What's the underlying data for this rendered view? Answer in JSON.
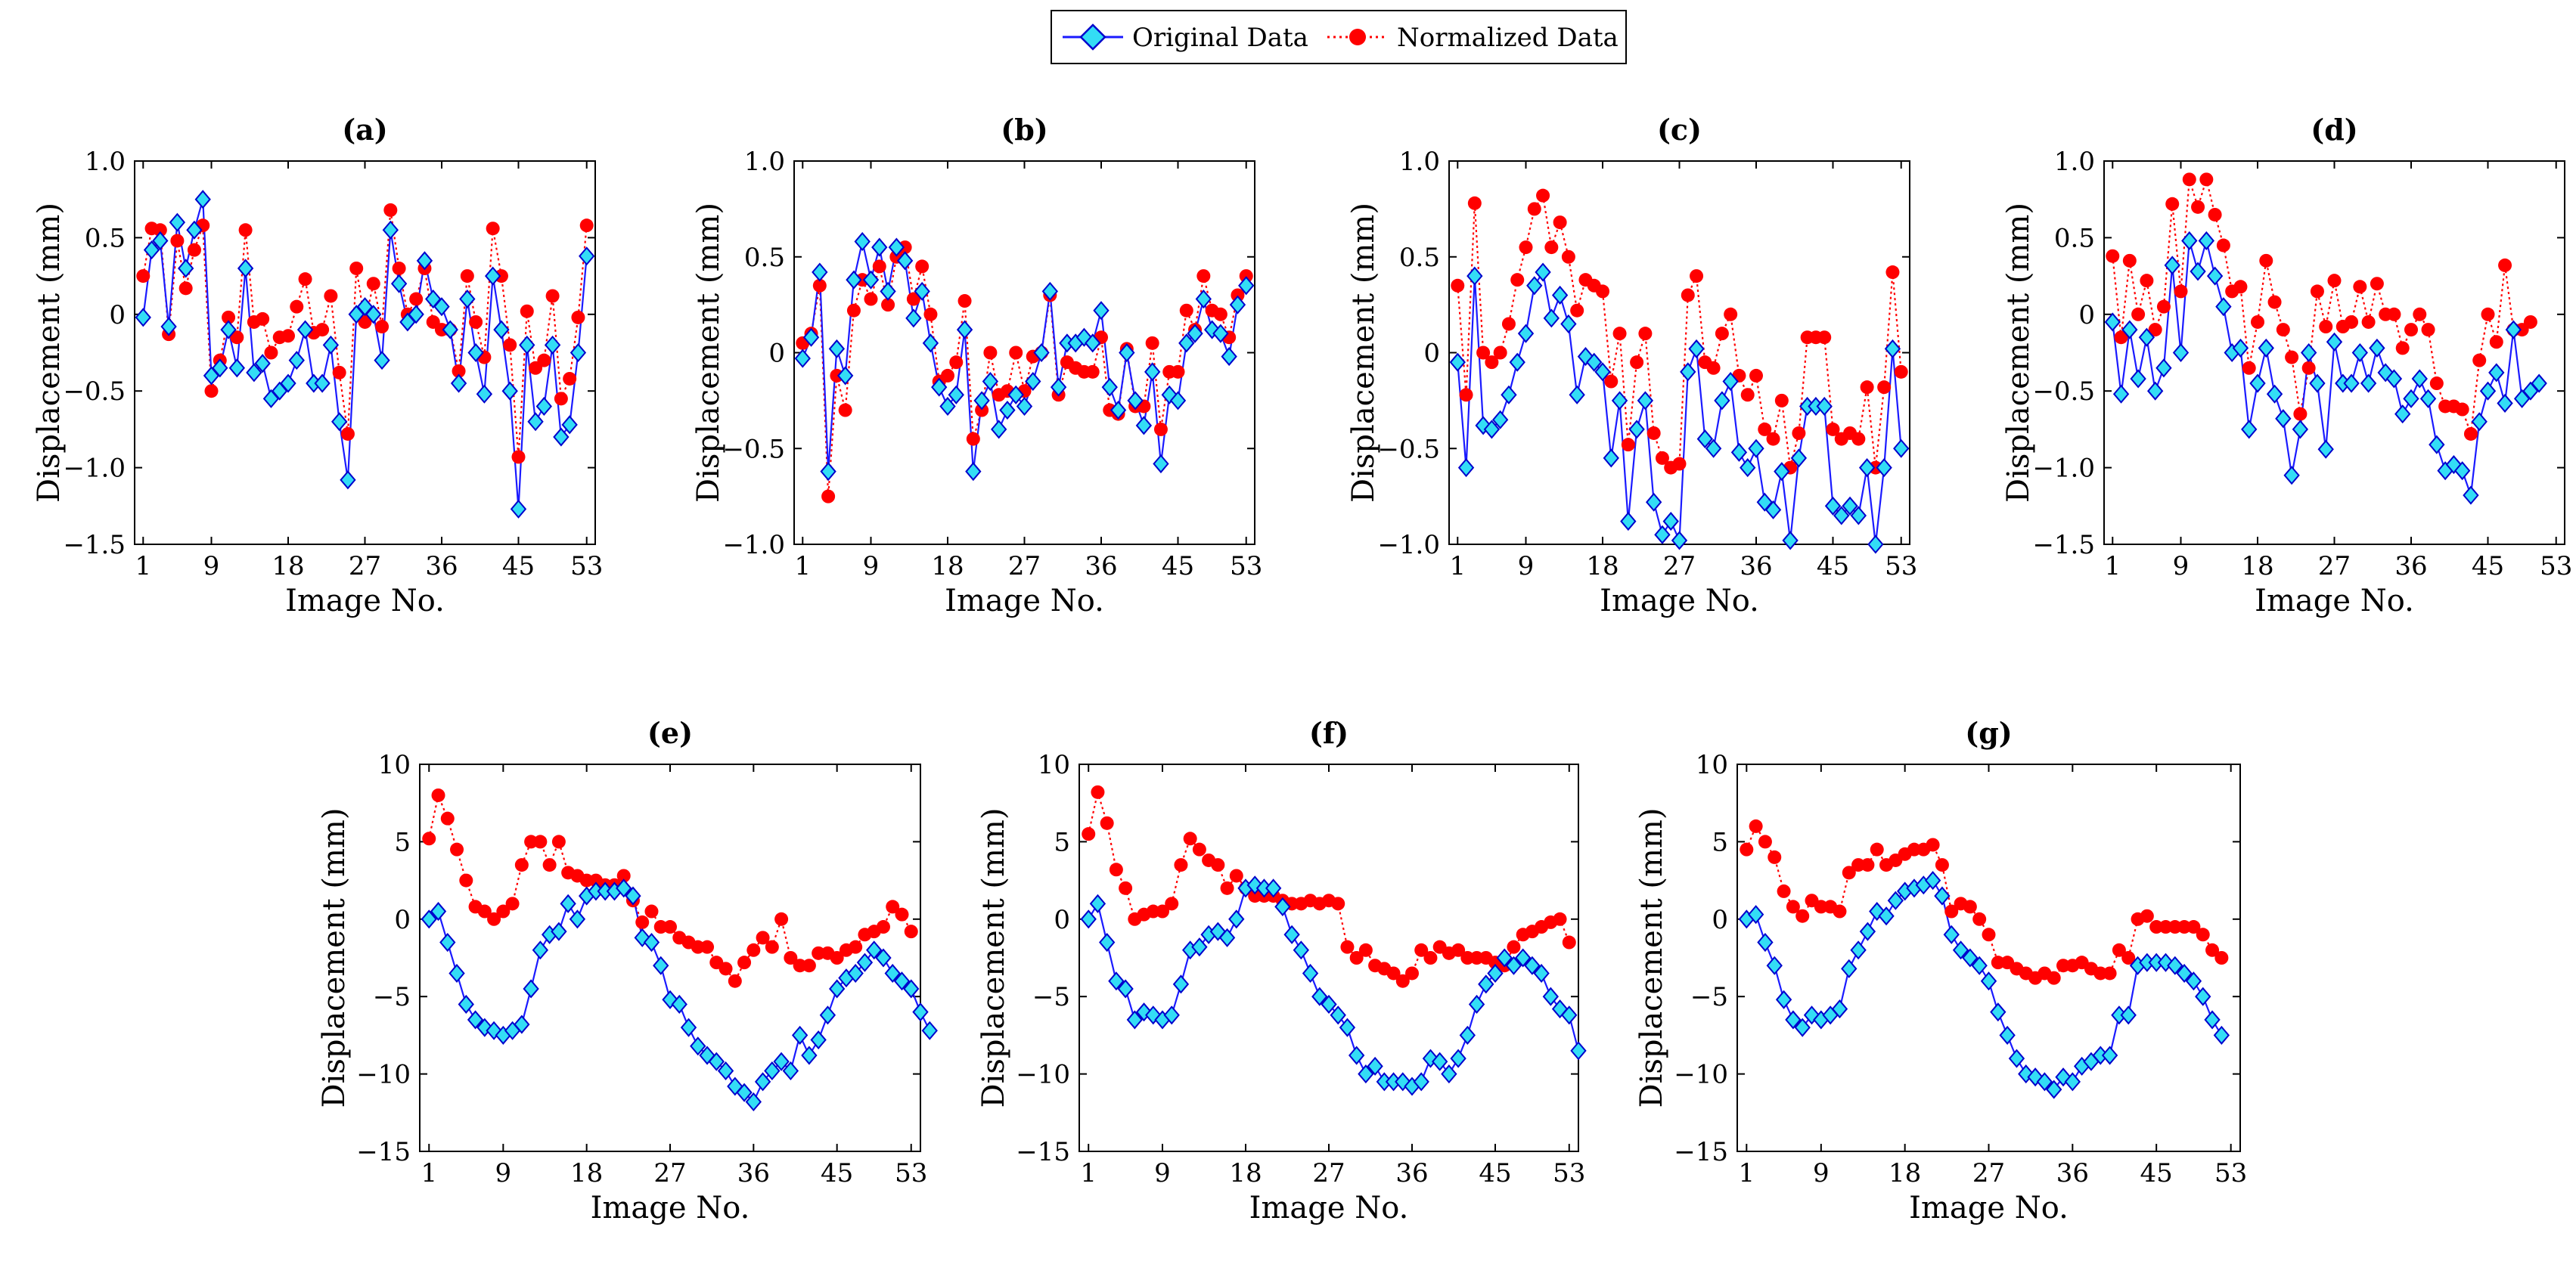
{
  "legend": {
    "original_label": "Original Data",
    "normalized_label": "Normalized Data",
    "position": "top-center"
  },
  "colors": {
    "original_line": "#1a1aff",
    "original_marker_fill": "#33ddf5",
    "original_marker_edge": "#0000cc",
    "normalized": "#ff0000",
    "axes": "#000000"
  },
  "chart_data": [
    {
      "id": "a",
      "type": "line",
      "title": "(a)",
      "xlabel": "Image No.",
      "ylabel": "Displacement (mm)",
      "xlim": [
        0,
        54
      ],
      "ylim": [
        -1.5,
        1.0
      ],
      "xticks": [
        1,
        9,
        18,
        27,
        36,
        45,
        53
      ],
      "xtick_labels": [
        "1",
        "9",
        "18",
        "27",
        "36",
        "45",
        "53"
      ],
      "yticks": [
        -1.5,
        -1.0,
        -0.5,
        0,
        0.5,
        1.0
      ],
      "ytick_labels": [
        "−1.5",
        "−1.0",
        "−0.5",
        "0",
        "0.5",
        "1.0"
      ],
      "series": [
        {
          "name": "Original Data",
          "values": [
            -0.02,
            0.42,
            0.48,
            -0.08,
            0.6,
            0.3,
            0.55,
            0.75,
            -0.4,
            -0.35,
            -0.1,
            -0.35,
            0.3,
            -0.38,
            -0.32,
            -0.55,
            -0.5,
            -0.45,
            -0.3,
            -0.1,
            -0.45,
            -0.45,
            -0.2,
            -0.7,
            -1.08,
            0.0,
            0.05,
            0.0,
            -0.3,
            0.55,
            0.2,
            -0.05,
            0.0,
            0.35,
            0.1,
            0.05,
            -0.1,
            -0.45,
            0.1,
            -0.25,
            -0.52,
            0.25,
            -0.1,
            -0.5,
            -1.27,
            -0.2,
            -0.7,
            -0.6,
            -0.2,
            -0.8,
            -0.72,
            -0.25,
            0.38
          ]
        },
        {
          "name": "Normalized Data",
          "values": [
            0.25,
            0.56,
            0.55,
            -0.13,
            0.48,
            0.17,
            0.42,
            0.58,
            -0.5,
            -0.3,
            -0.02,
            -0.15,
            0.55,
            -0.05,
            -0.03,
            -0.25,
            -0.15,
            -0.14,
            0.05,
            0.23,
            -0.12,
            -0.1,
            0.12,
            -0.38,
            -0.78,
            0.3,
            -0.05,
            0.2,
            -0.08,
            0.68,
            0.3,
            0.0,
            0.1,
            0.3,
            -0.05,
            -0.1,
            -0.1,
            -0.37,
            0.25,
            -0.05,
            -0.28,
            0.56,
            0.25,
            -0.2,
            -0.93,
            0.02,
            -0.35,
            -0.3,
            0.12,
            -0.55,
            -0.42,
            -0.02,
            0.58
          ]
        }
      ]
    },
    {
      "id": "b",
      "type": "line",
      "title": "(b)",
      "xlabel": "Image No.",
      "ylabel": "Displacement (mm)",
      "xlim": [
        0,
        54
      ],
      "ylim": [
        -1.0,
        1.0
      ],
      "xticks": [
        1,
        9,
        18,
        27,
        36,
        45,
        53
      ],
      "xtick_labels": [
        "1",
        "9",
        "18",
        "27",
        "36",
        "45",
        "53"
      ],
      "yticks": [
        -1.0,
        -0.5,
        0,
        0.5,
        1.0
      ],
      "ytick_labels": [
        "−1.0",
        "−0.5",
        "0",
        "0.5",
        "1.0"
      ],
      "series": [
        {
          "name": "Original Data",
          "values": [
            -0.03,
            0.08,
            0.42,
            -0.62,
            0.02,
            -0.12,
            0.38,
            0.58,
            0.38,
            0.55,
            0.32,
            0.55,
            0.48,
            0.18,
            0.32,
            0.05,
            -0.18,
            -0.28,
            -0.22,
            0.12,
            -0.62,
            -0.25,
            -0.15,
            -0.4,
            -0.3,
            -0.22,
            -0.28,
            -0.15,
            0.0,
            0.32,
            -0.18,
            0.05,
            0.05,
            0.08,
            0.05,
            0.22,
            -0.18,
            -0.3,
            0.0,
            -0.25,
            -0.38,
            -0.1,
            -0.58,
            -0.22,
            -0.25,
            0.05,
            0.1,
            0.28,
            0.12,
            0.1,
            -0.02,
            0.25,
            0.35
          ]
        },
        {
          "name": "Normalized Data",
          "values": [
            0.05,
            0.1,
            0.35,
            -0.75,
            -0.12,
            -0.3,
            0.22,
            0.38,
            0.28,
            0.45,
            0.25,
            0.5,
            0.55,
            0.28,
            0.45,
            0.2,
            -0.15,
            -0.12,
            -0.05,
            0.27,
            -0.45,
            -0.3,
            0.0,
            -0.22,
            -0.2,
            0.0,
            -0.2,
            -0.02,
            0.0,
            0.3,
            -0.22,
            -0.05,
            -0.08,
            -0.1,
            -0.1,
            0.08,
            -0.3,
            -0.32,
            0.02,
            -0.28,
            -0.28,
            0.05,
            -0.4,
            -0.1,
            -0.1,
            0.22,
            0.12,
            0.4,
            0.22,
            0.2,
            0.08,
            0.3,
            0.4
          ]
        }
      ]
    },
    {
      "id": "c",
      "type": "line",
      "title": "(c)",
      "xlabel": "Image No.",
      "ylabel": "Displacement (mm)",
      "xlim": [
        0,
        54
      ],
      "ylim": [
        -1.0,
        1.0
      ],
      "xticks": [
        1,
        9,
        18,
        27,
        36,
        45,
        53
      ],
      "xtick_labels": [
        "1",
        "9",
        "18",
        "27",
        "36",
        "45",
        "53"
      ],
      "yticks": [
        -1.0,
        -0.5,
        0,
        0.5,
        1.0
      ],
      "ytick_labels": [
        "−1.0",
        "−0.5",
        "0",
        "0.5",
        "1.0"
      ],
      "series": [
        {
          "name": "Original Data",
          "values": [
            -0.05,
            -0.6,
            0.4,
            -0.38,
            -0.4,
            -0.35,
            -0.22,
            -0.05,
            0.1,
            0.35,
            0.42,
            0.18,
            0.3,
            0.15,
            -0.22,
            -0.02,
            -0.05,
            -0.1,
            -0.55,
            -0.25,
            -0.88,
            -0.4,
            -0.25,
            -0.78,
            -0.95,
            -0.88,
            -0.98,
            -0.1,
            0.02,
            -0.45,
            -0.5,
            -0.25,
            -0.15,
            -0.52,
            -0.6,
            -0.5,
            -0.78,
            -0.82,
            -0.62,
            -0.98,
            -0.55,
            -0.28,
            -0.28,
            -0.28,
            -0.8,
            -0.85,
            -0.8,
            -0.85,
            -0.6,
            -1.0,
            -0.6,
            0.02,
            -0.5
          ]
        },
        {
          "name": "Normalized Data",
          "values": [
            0.35,
            -0.22,
            0.78,
            0.0,
            -0.05,
            0.0,
            0.15,
            0.38,
            0.55,
            0.75,
            0.82,
            0.55,
            0.68,
            0.5,
            0.22,
            0.38,
            0.35,
            0.32,
            -0.15,
            0.1,
            -0.48,
            -0.05,
            0.1,
            -0.42,
            -0.55,
            -0.6,
            -0.58,
            0.3,
            0.4,
            -0.05,
            -0.08,
            0.1,
            0.2,
            -0.12,
            -0.22,
            -0.12,
            -0.4,
            -0.45,
            -0.25,
            -0.6,
            -0.42,
            0.08,
            0.08,
            0.08,
            -0.4,
            -0.45,
            -0.42,
            -0.45,
            -0.18,
            -0.6,
            -0.18,
            0.42,
            -0.1
          ]
        }
      ]
    },
    {
      "id": "d",
      "type": "line",
      "title": "(d)",
      "xlabel": "Image No.",
      "ylabel": "Displacement (mm)",
      "xlim": [
        0,
        54
      ],
      "ylim": [
        -1.5,
        1.0
      ],
      "xticks": [
        1,
        9,
        18,
        27,
        36,
        45,
        53
      ],
      "xtick_labels": [
        "1",
        "9",
        "18",
        "27",
        "36",
        "45",
        "53"
      ],
      "yticks": [
        -1.5,
        -1.0,
        -0.5,
        0,
        0.5,
        1.0
      ],
      "ytick_labels": [
        "−1.5",
        "−1.0",
        "−0.5",
        "0",
        "0.5",
        "1.0"
      ],
      "series": [
        {
          "name": "Original Data",
          "values": [
            -0.05,
            -0.52,
            -0.1,
            -0.42,
            -0.15,
            -0.5,
            -0.35,
            0.32,
            -0.25,
            0.48,
            0.28,
            0.48,
            0.25,
            0.05,
            -0.25,
            -0.22,
            -0.75,
            -0.45,
            -0.22,
            -0.52,
            -0.68,
            -1.05,
            -0.75,
            -0.25,
            -0.45,
            -0.88,
            -0.18,
            -0.45,
            -0.45,
            -0.25,
            -0.45,
            -0.22,
            -0.38,
            -0.42,
            -0.65,
            -0.55,
            -0.42,
            -0.55,
            -0.85,
            -1.02,
            -0.98,
            -1.02,
            -1.18,
            -0.7,
            -0.5,
            -0.38,
            -0.58,
            -0.1,
            -0.55,
            -0.5,
            -0.45
          ]
        },
        {
          "name": "Normalized Data",
          "values": [
            0.38,
            -0.15,
            0.35,
            0.0,
            0.22,
            -0.1,
            0.05,
            0.72,
            0.15,
            0.88,
            0.7,
            0.88,
            0.65,
            0.45,
            0.15,
            0.18,
            -0.35,
            -0.05,
            0.35,
            0.08,
            -0.1,
            -0.28,
            -0.65,
            -0.35,
            0.15,
            -0.08,
            0.22,
            -0.08,
            -0.05,
            0.18,
            -0.05,
            0.2,
            0.0,
            0.0,
            -0.22,
            -0.1,
            0.0,
            -0.1,
            -0.45,
            -0.6,
            -0.6,
            -0.62,
            -0.78,
            -0.3,
            0.0,
            -0.18,
            0.32,
            -0.1,
            -0.1,
            -0.05
          ]
        }
      ]
    },
    {
      "id": "e",
      "type": "line",
      "title": "(e)",
      "xlabel": "Image No.",
      "ylabel": "Displacement (mm)",
      "xlim": [
        0,
        54
      ],
      "ylim": [
        -15,
        10
      ],
      "xticks": [
        1,
        9,
        18,
        27,
        36,
        45,
        53
      ],
      "xtick_labels": [
        "1",
        "9",
        "18",
        "27",
        "36",
        "45",
        "53"
      ],
      "yticks": [
        -15,
        -10,
        -5,
        0,
        5,
        10
      ],
      "ytick_labels": [
        "−15",
        "−10",
        "−5",
        "0",
        "5",
        "10"
      ],
      "series": [
        {
          "name": "Original Data",
          "values": [
            0.0,
            0.5,
            -1.5,
            -3.5,
            -5.5,
            -6.5,
            -7.0,
            -7.2,
            -7.5,
            -7.2,
            -6.8,
            -4.5,
            -2.0,
            -1.0,
            -0.8,
            1.0,
            0.0,
            1.5,
            1.8,
            1.8,
            1.8,
            2.0,
            1.5,
            -1.2,
            -1.5,
            -3.0,
            -5.2,
            -5.5,
            -7.0,
            -8.2,
            -8.8,
            -9.2,
            -9.8,
            -10.8,
            -11.2,
            -11.8,
            -10.5,
            -9.8,
            -9.2,
            -9.8,
            -7.5,
            -8.8,
            -7.8,
            -6.2,
            -4.5,
            -3.8,
            -3.5,
            -2.8,
            -2.0,
            -2.5,
            -3.5,
            -4.0,
            -4.5,
            -6.0,
            -7.2
          ]
        },
        {
          "name": "Normalized Data",
          "values": [
            5.2,
            8.0,
            6.5,
            4.5,
            2.5,
            0.8,
            0.5,
            0.0,
            0.5,
            1.0,
            3.5,
            5.0,
            5.0,
            3.5,
            5.0,
            3.0,
            2.8,
            2.5,
            2.5,
            2.2,
            2.2,
            2.8,
            1.2,
            -0.2,
            0.5,
            -0.5,
            -0.5,
            -1.2,
            -1.5,
            -1.8,
            -1.8,
            -2.8,
            -3.2,
            -4.0,
            -2.8,
            -2.0,
            -1.2,
            -1.8,
            0.0,
            -2.5,
            -3.0,
            -3.0,
            -2.2,
            -2.2,
            -2.5,
            -2.0,
            -1.8,
            -1.0,
            -0.8,
            -0.5,
            0.8,
            0.3,
            -0.8
          ]
        }
      ]
    },
    {
      "id": "f",
      "type": "line",
      "title": "(f)",
      "xlabel": "Image No.",
      "ylabel": "Displacement (mm)",
      "xlim": [
        0,
        54
      ],
      "ylim": [
        -15,
        10
      ],
      "xticks": [
        1,
        9,
        18,
        27,
        36,
        45,
        53
      ],
      "xtick_labels": [
        "1",
        "9",
        "18",
        "27",
        "36",
        "45",
        "53"
      ],
      "yticks": [
        -15,
        -10,
        -5,
        0,
        5,
        10
      ],
      "ytick_labels": [
        "−15",
        "−10",
        "−5",
        "0",
        "5",
        "10"
      ],
      "series": [
        {
          "name": "Original Data",
          "values": [
            0.0,
            1.0,
            -1.5,
            -4.0,
            -4.5,
            -6.5,
            -6.0,
            -6.2,
            -6.5,
            -6.2,
            -4.2,
            -2.0,
            -1.8,
            -1.0,
            -0.8,
            -1.2,
            0.0,
            2.0,
            2.2,
            2.0,
            2.0,
            0.8,
            -1.0,
            -2.0,
            -3.5,
            -5.0,
            -5.5,
            -6.2,
            -7.0,
            -8.8,
            -10.0,
            -9.5,
            -10.5,
            -10.5,
            -10.5,
            -10.8,
            -10.5,
            -9.0,
            -9.2,
            -10.0,
            -9.0,
            -7.5,
            -5.5,
            -4.2,
            -3.5,
            -2.5,
            -3.0,
            -2.5,
            -3.0,
            -3.5,
            -5.0,
            -5.8,
            -6.2,
            -8.5
          ]
        },
        {
          "name": "Normalized Data",
          "values": [
            5.5,
            8.2,
            6.2,
            3.2,
            2.0,
            0.0,
            0.3,
            0.5,
            0.5,
            1.0,
            3.5,
            5.2,
            4.5,
            3.8,
            3.5,
            2.0,
            2.8,
            2.0,
            1.5,
            1.5,
            1.5,
            1.2,
            1.0,
            1.0,
            1.2,
            1.0,
            1.2,
            1.0,
            -1.8,
            -2.5,
            -2.0,
            -3.0,
            -3.2,
            -3.5,
            -4.0,
            -3.5,
            -2.0,
            -2.5,
            -1.8,
            -2.2,
            -2.0,
            -2.5,
            -2.5,
            -2.5,
            -2.8,
            -3.0,
            -1.8,
            -1.0,
            -0.8,
            -0.5,
            -0.2,
            0.0,
            -1.5
          ]
        }
      ]
    },
    {
      "id": "g",
      "type": "line",
      "title": "(g)",
      "xlabel": "Image No.",
      "ylabel": "Displacement (mm)",
      "xlim": [
        0,
        54
      ],
      "ylim": [
        -15,
        10
      ],
      "xticks": [
        1,
        9,
        18,
        27,
        36,
        45,
        53
      ],
      "xtick_labels": [
        "1",
        "9",
        "18",
        "27",
        "36",
        "45",
        "53"
      ],
      "yticks": [
        -15,
        -10,
        -5,
        0,
        5,
        10
      ],
      "ytick_labels": [
        "−15",
        "−10",
        "−5",
        "0",
        "5",
        "10"
      ],
      "series": [
        {
          "name": "Original Data",
          "values": [
            0.0,
            0.3,
            -1.5,
            -3.0,
            -5.2,
            -6.5,
            -7.0,
            -6.2,
            -6.5,
            -6.2,
            -5.8,
            -3.2,
            -2.0,
            -0.8,
            0.5,
            0.2,
            1.2,
            1.8,
            2.0,
            2.2,
            2.5,
            1.5,
            -1.0,
            -2.0,
            -2.5,
            -3.0,
            -4.0,
            -6.0,
            -7.5,
            -9.0,
            -10.0,
            -10.2,
            -10.5,
            -11.0,
            -10.2,
            -10.5,
            -9.5,
            -9.2,
            -8.8,
            -8.8,
            -6.2,
            -6.2,
            -3.0,
            -2.8,
            -2.8,
            -2.8,
            -3.0,
            -3.5,
            -4.0,
            -5.0,
            -6.5,
            -7.5
          ]
        },
        {
          "name": "Normalized Data",
          "values": [
            4.5,
            6.0,
            5.0,
            4.0,
            1.8,
            0.8,
            0.2,
            1.2,
            0.8,
            0.8,
            0.5,
            3.0,
            3.5,
            3.5,
            4.5,
            3.5,
            3.8,
            4.2,
            4.5,
            4.5,
            4.8,
            3.5,
            0.5,
            1.0,
            0.8,
            0.0,
            -1.0,
            -2.8,
            -2.8,
            -3.2,
            -3.5,
            -3.8,
            -3.5,
            -3.8,
            -3.0,
            -3.0,
            -2.8,
            -3.2,
            -3.5,
            -3.5,
            -2.0,
            -2.5,
            0.0,
            0.2,
            -0.5,
            -0.5,
            -0.5,
            -0.5,
            -0.5,
            -1.0,
            -2.0,
            -2.5
          ]
        }
      ]
    }
  ]
}
